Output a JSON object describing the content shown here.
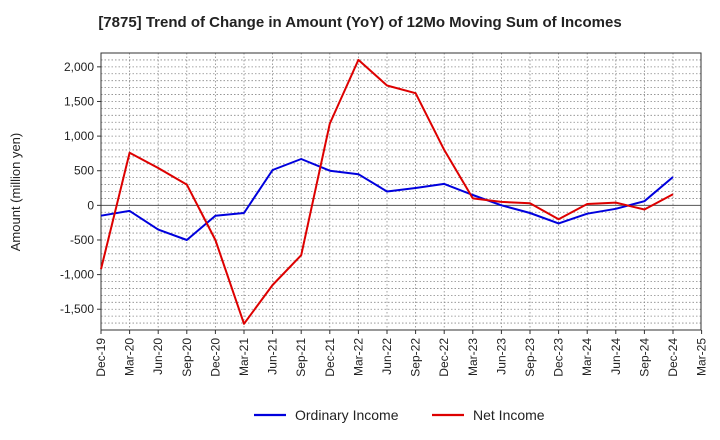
{
  "chart_data": {
    "type": "line",
    "title": "[7875]  Trend of Change in Amount (YoY) of 12Mo Moving Sum of Incomes",
    "xlabel": "",
    "ylabel": "Amount (million yen)",
    "ylim": [
      -1800,
      2200
    ],
    "yticks": [
      -1500,
      -1000,
      -500,
      0,
      500,
      1000,
      1500,
      2000
    ],
    "ytick_labels": [
      "-1,500",
      "-1,000",
      "-500",
      "0",
      "500",
      "1,000",
      "1,500",
      "2,000"
    ],
    "categories": [
      "Dec-19",
      "Mar-20",
      "Jun-20",
      "Sep-20",
      "Dec-20",
      "Mar-21",
      "Jun-21",
      "Sep-21",
      "Dec-21",
      "Mar-22",
      "Jun-22",
      "Sep-22",
      "Dec-22",
      "Mar-23",
      "Jun-23",
      "Sep-23",
      "Dec-23",
      "Mar-24",
      "Jun-24",
      "Sep-24",
      "Dec-24",
      "Mar-25"
    ],
    "grid": true,
    "legend_position": "bottom",
    "series": [
      {
        "name": "Ordinary Income",
        "color": "#0000dd",
        "values": [
          -150,
          -80,
          -350,
          -500,
          -150,
          -110,
          510,
          670,
          500,
          450,
          200,
          250,
          310,
          150,
          0,
          -110,
          -260,
          -120,
          -50,
          60,
          410,
          null
        ]
      },
      {
        "name": "Net Income",
        "color": "#dd0000",
        "values": [
          -920,
          760,
          540,
          300,
          -500,
          -1710,
          -1150,
          -720,
          1180,
          2100,
          1730,
          1620,
          800,
          100,
          50,
          30,
          -200,
          20,
          40,
          -60,
          160,
          null
        ]
      }
    ]
  }
}
